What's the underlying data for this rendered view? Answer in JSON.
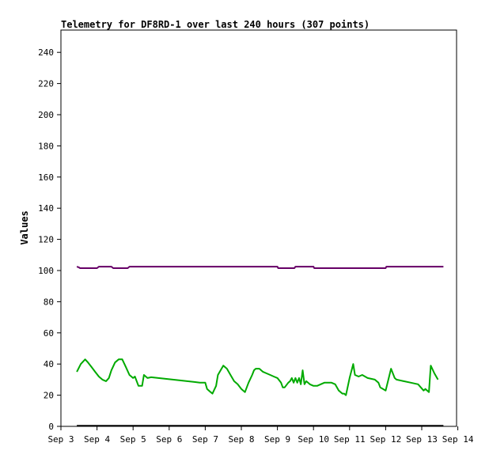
{
  "chart_data": {
    "type": "line",
    "title": "Telemetry for DF8RD-1 over last 240 hours (307 points)",
    "xlabel": "",
    "ylabel": "Values",
    "xlim": [
      0,
      11.5
    ],
    "ylim": [
      0,
      255
    ],
    "x_ticks": [
      {
        "label": "Sep 3",
        "value": 0
      },
      {
        "label": "Sep 4",
        "value": 1
      },
      {
        "label": "Sep 5",
        "value": 2
      },
      {
        "label": "Sep 6",
        "value": 3
      },
      {
        "label": "Sep 7",
        "value": 4
      },
      {
        "label": "Sep 8",
        "value": 5
      },
      {
        "label": "Sep 9",
        "value": 6
      },
      {
        "label": "Sep 10",
        "value": 7
      },
      {
        "label": "Sep 11",
        "value": 8
      },
      {
        "label": "Sep 12",
        "value": 9
      },
      {
        "label": "Sep 13",
        "value": 10
      },
      {
        "label": "Sep 14",
        "value": 11
      }
    ],
    "y_ticks": [
      0,
      20,
      40,
      60,
      80,
      100,
      120,
      140,
      160,
      180,
      200,
      220,
      240
    ],
    "grid": false,
    "series": [
      {
        "color": "#660066",
        "x": [
          0.44,
          0.5,
          0.53,
          1.0,
          1.05,
          1.4,
          1.45,
          1.85,
          1.9,
          2.5,
          3.0,
          3.5,
          4.0,
          4.5,
          5.0,
          5.5,
          6.0,
          6.02,
          6.47,
          6.5,
          7.0,
          7.02,
          7.5,
          8.0,
          8.5,
          9.0,
          9.02,
          9.5,
          10.0,
          10.5,
          10.6
        ],
        "y": [
          102.5,
          102,
          101.5,
          101.5,
          102.5,
          102.5,
          101.5,
          101.5,
          102.5,
          102.5,
          102.5,
          102.5,
          102.5,
          102.5,
          102.5,
          102.5,
          102.5,
          101.5,
          101.5,
          102.5,
          102.5,
          101.5,
          101.5,
          101.5,
          101.5,
          101.5,
          102.5,
          102.5,
          102.5,
          102.5,
          102.5
        ]
      },
      {
        "color": "#00aa00",
        "x": [
          0.44,
          0.55,
          0.67,
          0.75,
          0.85,
          0.95,
          1.05,
          1.15,
          1.25,
          1.33,
          1.4,
          1.5,
          1.6,
          1.7,
          1.8,
          1.9,
          2.0,
          2.05,
          2.15,
          2.25,
          2.3,
          2.4,
          2.5,
          2.7,
          2.9,
          3.1,
          3.3,
          3.5,
          3.7,
          3.85,
          4.0,
          4.05,
          4.15,
          4.2,
          4.3,
          4.35,
          4.5,
          4.6,
          4.7,
          4.8,
          4.9,
          5.0,
          5.1,
          5.2,
          5.3,
          5.35,
          5.4,
          5.5,
          5.6,
          5.7,
          5.8,
          5.9,
          6.0,
          6.1,
          6.15,
          6.2,
          6.3,
          6.35,
          6.4,
          6.45,
          6.5,
          6.55,
          6.6,
          6.65,
          6.7,
          6.75,
          6.8,
          6.9,
          7.0,
          7.1,
          7.2,
          7.3,
          7.4,
          7.5,
          7.6,
          7.7,
          7.8,
          7.85,
          7.9,
          8.0,
          8.1,
          8.15,
          8.25,
          8.35,
          8.5,
          8.7,
          8.8,
          8.85,
          9.0,
          9.15,
          9.2,
          9.25,
          9.3,
          9.5,
          9.7,
          9.9,
          10.05,
          10.1,
          10.2,
          10.25,
          10.35,
          10.45
        ],
        "y": [
          35,
          40,
          43,
          41,
          38,
          35,
          32,
          30,
          29,
          31,
          36,
          41,
          43,
          43,
          38,
          33,
          31,
          32,
          26,
          26,
          33,
          31,
          31.5,
          31,
          30.5,
          30,
          29.5,
          29,
          28.5,
          28,
          28,
          24,
          22,
          21,
          26,
          33,
          39,
          37,
          33,
          29,
          27,
          24,
          22,
          28,
          33,
          36,
          37,
          37,
          35,
          34,
          33,
          32,
          31,
          28,
          25,
          25,
          28,
          29,
          31,
          28,
          31,
          28,
          31,
          27,
          36,
          27,
          29,
          27,
          26,
          26,
          27,
          28,
          28,
          28,
          27,
          23,
          21,
          21,
          20,
          31,
          40,
          33,
          32,
          33,
          31,
          30,
          28,
          25,
          23,
          37,
          34,
          31,
          30,
          29,
          28,
          27,
          23,
          24,
          22,
          39,
          34,
          30
        ]
      },
      {
        "color": "#000000",
        "x": [
          0.44,
          10.6
        ],
        "y": [
          0.4,
          0.4
        ]
      }
    ]
  }
}
